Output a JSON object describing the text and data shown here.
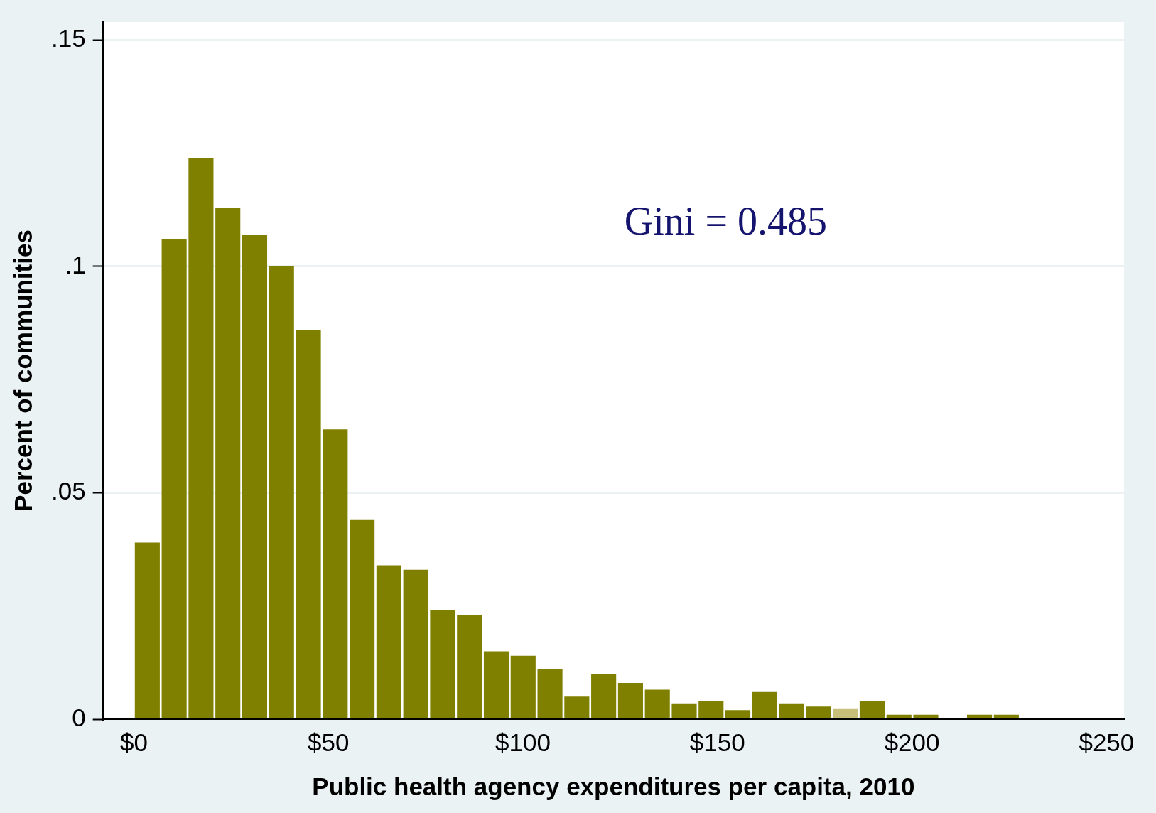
{
  "chart_data": {
    "type": "histogram",
    "xlabel": "Public health agency expenditures per capita, 2010",
    "ylabel": "Percent of communities",
    "bins": [
      0,
      6.9,
      13.8,
      20.7,
      27.6,
      34.5,
      41.4,
      48.3,
      55.2,
      62.1,
      69,
      75.9,
      82.8,
      89.7,
      96.6,
      103.5,
      110.4,
      117.3,
      124.2,
      131.1,
      138,
      144.9,
      151.8,
      158.7,
      165.6,
      172.5,
      179.4,
      186.3,
      193.2,
      200.1,
      207,
      213.9,
      220.8,
      227.7
    ],
    "values": [
      0.039,
      0.106,
      0.124,
      0.113,
      0.107,
      0.1,
      0.086,
      0.064,
      0.044,
      0.034,
      0.033,
      0.024,
      0.023,
      0.015,
      0.014,
      0.011,
      0.005,
      0.01,
      0.008,
      0.0065,
      0.0035,
      0.004,
      0.002,
      0.006,
      0.0035,
      0.0028,
      0.0024,
      0.004,
      0.001,
      0.001,
      0,
      0.001,
      0.001
    ],
    "colors": [
      "#808000",
      "#808000",
      "#808000",
      "#808000",
      "#808000",
      "#808000",
      "#808000",
      "#808000",
      "#808000",
      "#808000",
      "#808000",
      "#808000",
      "#808000",
      "#808000",
      "#808000",
      "#808000",
      "#808000",
      "#808000",
      "#808000",
      "#808000",
      "#808000",
      "#808000",
      "#808000",
      "#808000",
      "#808000",
      "#808000",
      "#c8c07a",
      "#808000",
      "#808000",
      "#808000",
      "#808000",
      "#808000",
      "#808000"
    ],
    "xlim": [
      -8,
      254.5
    ],
    "ylim": [
      0,
      0.154
    ],
    "xticks": [
      {
        "value": 0,
        "label": "$0"
      },
      {
        "value": 50,
        "label": "$50"
      },
      {
        "value": 100,
        "label": "$100"
      },
      {
        "value": 150,
        "label": "$150"
      },
      {
        "value": 200,
        "label": "$200"
      },
      {
        "value": 250,
        "label": "$250"
      }
    ],
    "yticks": [
      0,
      {
        "value": 0.05,
        "label": ".05"
      },
      {
        "value": 0.1,
        "label": ".1"
      },
      {
        "value": 0.15,
        "label": ".15"
      }
    ],
    "grid": "y",
    "legend": false,
    "annotations": [
      "Gini = 0.485"
    ]
  }
}
